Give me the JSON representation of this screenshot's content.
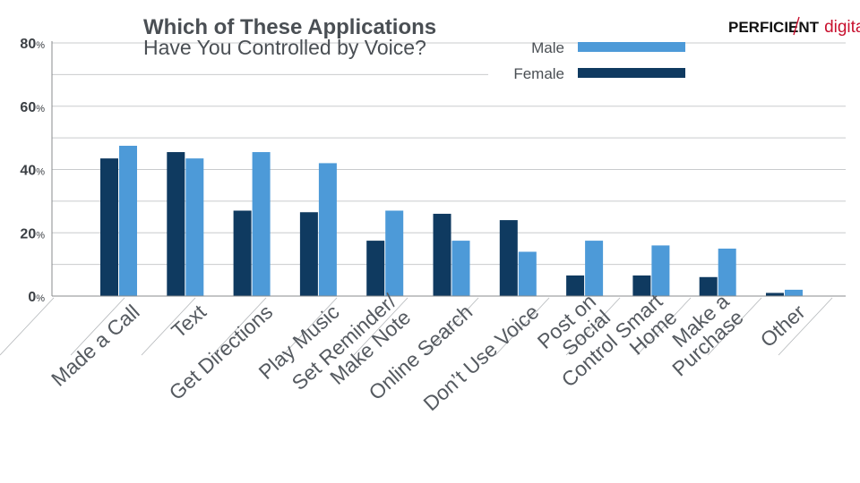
{
  "chart_data": {
    "type": "bar",
    "title": "Which of These Applications",
    "subtitle": "Have You Controlled by Voice?",
    "xlabel": "",
    "ylabel": "",
    "ylim": [
      0,
      80
    ],
    "y_ticks": [
      {
        "value": 0,
        "label": "0",
        "suffix": "%"
      },
      {
        "value": 20,
        "label": "20",
        "suffix": "%"
      },
      {
        "value": 40,
        "label": "40",
        "suffix": "%"
      },
      {
        "value": 60,
        "label": "60",
        "suffix": "%"
      },
      {
        "value": 80,
        "label": "80",
        "suffix": "%"
      }
    ],
    "grid": true,
    "legend_position": "top-right",
    "categories": [
      [
        "Made a Call"
      ],
      [
        "Text"
      ],
      [
        "Get Directions"
      ],
      [
        "Play Music"
      ],
      [
        "Set Reminder/",
        "Make Note"
      ],
      [
        "Online Search"
      ],
      [
        "Don’t Use Voice"
      ],
      [
        "Post on",
        "Social"
      ],
      [
        "Control Smart",
        "Home"
      ],
      [
        "Make a",
        "Purchase"
      ],
      [
        "Other"
      ]
    ],
    "series": [
      {
        "name": "Female",
        "color": "#0f3a60",
        "values": [
          43.5,
          45.5,
          27,
          26.5,
          17.5,
          26,
          24,
          6.5,
          6.5,
          6,
          1
        ]
      },
      {
        "name": "Male",
        "color": "#4d9ad8",
        "values": [
          47.5,
          43.5,
          45.5,
          42,
          27,
          17.5,
          14,
          17.5,
          16,
          15,
          2
        ]
      }
    ],
    "legend_order": [
      "Male",
      "Female"
    ]
  },
  "logo": {
    "part1": "PERFICIENT",
    "part2": "digital"
  },
  "colors": {
    "grid": "#c9cbcd",
    "axis": "#888b8e",
    "female": "#0f3a60",
    "male": "#4d9ad8",
    "logo_accent": "#c8102e"
  }
}
